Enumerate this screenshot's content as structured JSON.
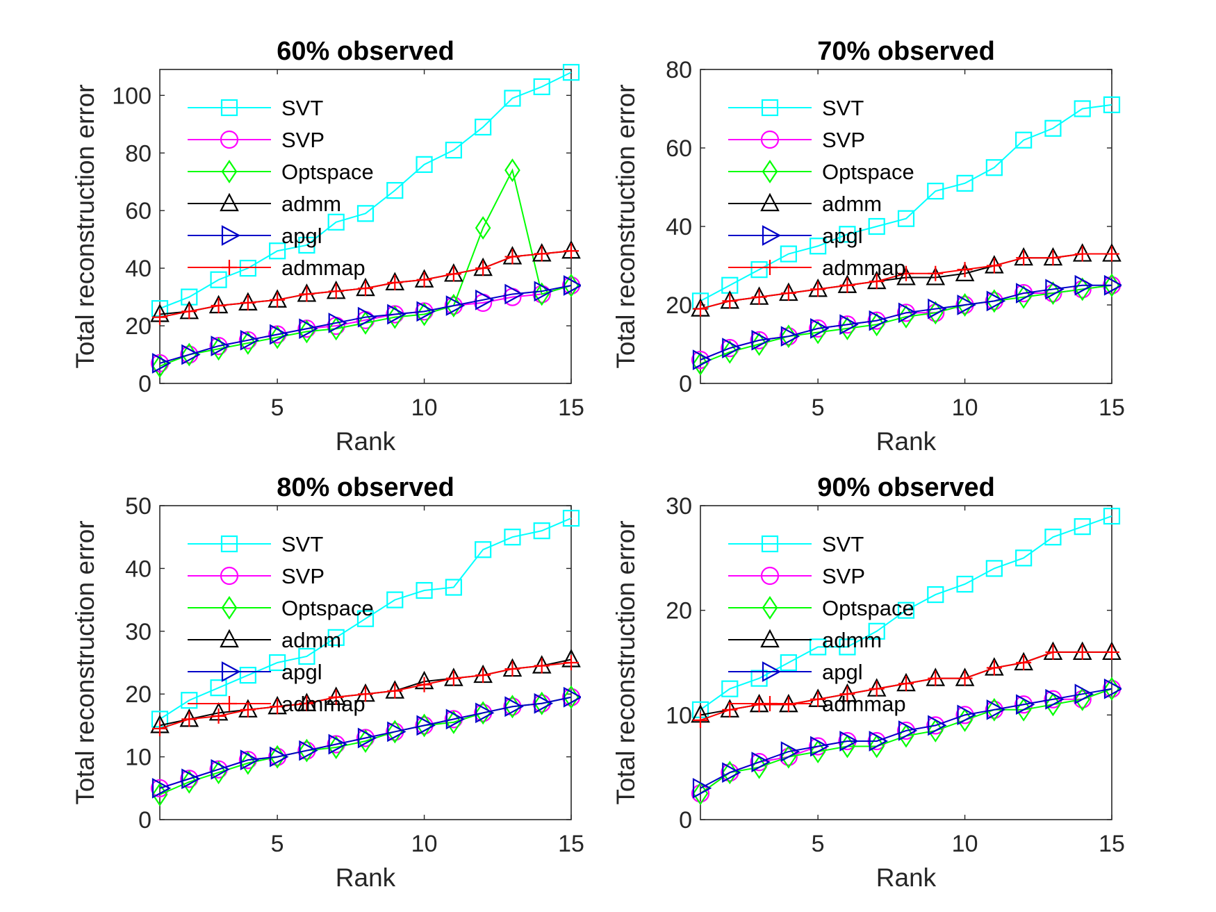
{
  "chart_data": [
    {
      "type": "line",
      "title": "60% observed",
      "xlabel": "Rank",
      "ylabel": "Total reconstruction error",
      "xlim": [
        1,
        15
      ],
      "ylim": [
        0,
        109
      ],
      "xticks": [
        5,
        10,
        15
      ],
      "yticks": [
        0,
        20,
        40,
        60,
        80,
        100
      ],
      "grid": false,
      "legend": "top-left",
      "x": [
        1,
        2,
        3,
        4,
        5,
        6,
        7,
        8,
        9,
        10,
        11,
        12,
        13,
        14,
        15
      ],
      "series": [
        {
          "name": "SVT",
          "color": "#00ffff",
          "marker": "square",
          "values": [
            26,
            30,
            36,
            40,
            46,
            48,
            56,
            59,
            67,
            76,
            81,
            89,
            99,
            103,
            108
          ]
        },
        {
          "name": "SVP",
          "color": "#ff00ff",
          "marker": "circle",
          "values": [
            7,
            10,
            13,
            15,
            17,
            19,
            20,
            22,
            24,
            25,
            27,
            28,
            30,
            31,
            34
          ]
        },
        {
          "name": "Optspace",
          "color": "#00ff00",
          "marker": "diamond",
          "values": [
            6,
            10,
            12,
            14,
            16,
            18,
            19,
            21,
            23,
            24,
            27,
            54,
            74,
            31,
            34
          ]
        },
        {
          "name": "admm",
          "color": "#000000",
          "marker": "triangle-up",
          "values": [
            24,
            25,
            27,
            28,
            29,
            31,
            32,
            33,
            35,
            36,
            38,
            40,
            44,
            45,
            46
          ]
        },
        {
          "name": "apgl",
          "color": "#0000c8",
          "marker": "triangle-right",
          "values": [
            7,
            10,
            13,
            15,
            17,
            19,
            21,
            23,
            24,
            25,
            27,
            29,
            31,
            32,
            34
          ]
        },
        {
          "name": "admmap",
          "color": "#ff0000",
          "marker": "plus",
          "values": [
            23,
            25,
            27,
            28,
            29,
            31,
            32,
            33,
            35,
            36,
            38,
            40,
            44,
            45,
            46
          ]
        }
      ]
    },
    {
      "type": "line",
      "title": "70% observed",
      "xlabel": "Rank",
      "ylabel": "Total reconstruction error",
      "xlim": [
        1,
        15
      ],
      "ylim": [
        0,
        80
      ],
      "xticks": [
        5,
        10,
        15
      ],
      "yticks": [
        0,
        20,
        40,
        60,
        80
      ],
      "grid": false,
      "legend": "top-left",
      "x": [
        1,
        2,
        3,
        4,
        5,
        6,
        7,
        8,
        9,
        10,
        11,
        12,
        13,
        14,
        15
      ],
      "series": [
        {
          "name": "SVT",
          "color": "#00ffff",
          "marker": "square",
          "values": [
            21,
            25,
            29,
            33,
            35,
            38,
            40,
            42,
            49,
            51,
            55,
            62,
            65,
            70,
            71
          ]
        },
        {
          "name": "SVP",
          "color": "#ff00ff",
          "marker": "circle",
          "values": [
            6,
            9,
            11,
            12,
            14,
            15,
            16,
            18,
            18,
            20,
            21,
            23,
            23,
            24,
            25
          ]
        },
        {
          "name": "Optspace",
          "color": "#00ff00",
          "marker": "diamond",
          "values": [
            5,
            8,
            10,
            12,
            13,
            14,
            15,
            17,
            18,
            20,
            21,
            22,
            23,
            24,
            25
          ]
        },
        {
          "name": "admm",
          "color": "#000000",
          "marker": "triangle-up",
          "values": [
            19,
            21,
            22,
            23,
            24,
            25,
            26,
            27,
            27,
            28,
            30,
            32,
            32,
            33,
            33
          ]
        },
        {
          "name": "apgl",
          "color": "#0000c8",
          "marker": "triangle-right",
          "values": [
            6,
            9,
            11,
            12,
            14,
            15,
            16,
            18,
            19,
            20,
            21,
            23,
            24,
            25,
            25
          ]
        },
        {
          "name": "admmap",
          "color": "#ff0000",
          "marker": "plus",
          "values": [
            19,
            21,
            22,
            23,
            24,
            25,
            26,
            28,
            28,
            29,
            30,
            32,
            32,
            33,
            33
          ]
        }
      ]
    },
    {
      "type": "line",
      "title": "80% observed",
      "xlabel": "Rank",
      "ylabel": "Total reconstruction error",
      "xlim": [
        1,
        15
      ],
      "ylim": [
        0,
        50
      ],
      "xticks": [
        5,
        10,
        15
      ],
      "yticks": [
        0,
        10,
        20,
        30,
        40,
        50
      ],
      "grid": false,
      "legend": "top-left",
      "x": [
        1,
        2,
        3,
        4,
        5,
        6,
        7,
        8,
        9,
        10,
        11,
        12,
        13,
        14,
        15
      ],
      "series": [
        {
          "name": "SVT",
          "color": "#00ffff",
          "marker": "square",
          "values": [
            16,
            19,
            21,
            23,
            25,
            26,
            29,
            32,
            35,
            36.5,
            37,
            43,
            45,
            46,
            48
          ]
        },
        {
          "name": "SVP",
          "color": "#ff00ff",
          "marker": "circle",
          "values": [
            5,
            6.5,
            8,
            9.5,
            10,
            11,
            12,
            13,
            14,
            15,
            16,
            17,
            18,
            18.5,
            19.5
          ]
        },
        {
          "name": "Optspace",
          "color": "#00ff00",
          "marker": "diamond",
          "values": [
            4,
            6,
            7.5,
            9,
            10,
            11,
            11.5,
            12.5,
            14,
            15,
            15.5,
            17,
            18,
            18.5,
            19.5
          ]
        },
        {
          "name": "admm",
          "color": "#000000",
          "marker": "triangle-up",
          "values": [
            15,
            16,
            17,
            17.5,
            18,
            18.5,
            19.5,
            20,
            20.5,
            22,
            22.5,
            23,
            24,
            24.5,
            25.5
          ]
        },
        {
          "name": "apgl",
          "color": "#0000c8",
          "marker": "triangle-right",
          "values": [
            5,
            6.5,
            8,
            9.5,
            10,
            11,
            12,
            13,
            14,
            15,
            16,
            17,
            18,
            18.5,
            19.5
          ]
        },
        {
          "name": "admmap",
          "color": "#ff0000",
          "marker": "plus",
          "values": [
            14.5,
            16,
            16.5,
            17.5,
            18,
            18.5,
            19.5,
            20,
            20.5,
            21.5,
            22.5,
            23,
            24,
            24.5,
            25
          ]
        }
      ]
    },
    {
      "type": "line",
      "title": "90% observed",
      "xlabel": "Rank",
      "ylabel": "Total reconstruction error",
      "xlim": [
        1,
        15
      ],
      "ylim": [
        0,
        30
      ],
      "xticks": [
        5,
        10,
        15
      ],
      "yticks": [
        0,
        10,
        20,
        30
      ],
      "grid": false,
      "legend": "top-left",
      "x": [
        1,
        2,
        3,
        4,
        5,
        6,
        7,
        8,
        9,
        10,
        11,
        12,
        13,
        14,
        15
      ],
      "series": [
        {
          "name": "SVT",
          "color": "#00ffff",
          "marker": "square",
          "values": [
            10.5,
            12.5,
            13.5,
            15,
            16.5,
            16.5,
            18,
            20,
            21.5,
            22.5,
            24,
            25,
            27,
            28,
            29
          ]
        },
        {
          "name": "SVP",
          "color": "#ff00ff",
          "marker": "circle",
          "values": [
            2.5,
            4.5,
            5.5,
            6,
            7,
            7.5,
            7.5,
            8.5,
            9,
            10,
            10.5,
            11,
            11.5,
            11.5,
            12.5
          ]
        },
        {
          "name": "Optspace",
          "color": "#00ff00",
          "marker": "diamond",
          "values": [
            2.5,
            4.5,
            5,
            6,
            6.5,
            7,
            7,
            8,
            8.5,
            9.5,
            10.5,
            10.5,
            11,
            11.5,
            12.5
          ]
        },
        {
          "name": "admm",
          "color": "#000000",
          "marker": "triangle-up",
          "values": [
            10,
            10.5,
            11,
            11,
            11.5,
            12,
            12.5,
            13,
            13.5,
            13.5,
            14.5,
            15,
            16,
            16,
            16
          ]
        },
        {
          "name": "apgl",
          "color": "#0000c8",
          "marker": "triangle-right",
          "values": [
            3,
            4.5,
            5.5,
            6.5,
            7,
            7.5,
            7.5,
            8.5,
            9,
            10,
            10.5,
            11,
            11.5,
            12,
            12.5
          ]
        },
        {
          "name": "admmap",
          "color": "#ff0000",
          "marker": "plus",
          "values": [
            9.5,
            10.5,
            11,
            11,
            11.5,
            12,
            12.5,
            13,
            13.5,
            13.5,
            14.5,
            15,
            16,
            16,
            16
          ]
        }
      ]
    }
  ]
}
